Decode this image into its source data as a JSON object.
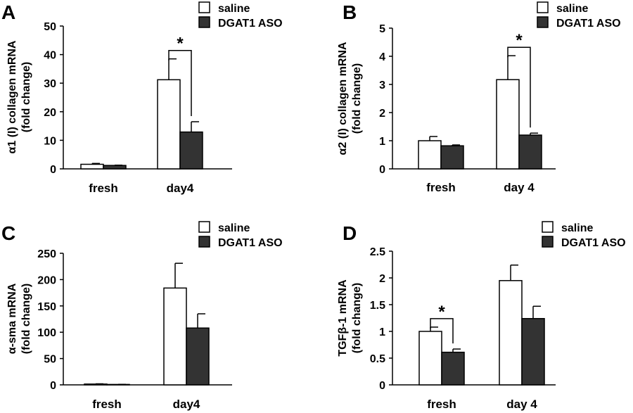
{
  "chart_data": [
    {
      "panel": "A",
      "type": "bar",
      "categories": [
        "fresh",
        "day4"
      ],
      "series": [
        {
          "name": "saline",
          "values": [
            1.6,
            31.2
          ],
          "errors": [
            0.3,
            7.3
          ],
          "color": "#ffffff"
        },
        {
          "name": "DGAT1 ASO",
          "values": [
            1.2,
            12.9
          ],
          "errors": [
            0.1,
            3.6
          ],
          "color": "#333333"
        }
      ],
      "ylabel_lines": [
        "α1 (I) collagen mRNA",
        "(fold change)"
      ],
      "ylim": [
        0,
        50
      ],
      "yticks": [
        "0",
        "10",
        "20",
        "30",
        "40",
        "50"
      ],
      "legend": "top-right",
      "significance": [
        {
          "category": "day4",
          "label": "*"
        }
      ]
    },
    {
      "panel": "B",
      "type": "bar",
      "categories": [
        "fresh",
        "day 4"
      ],
      "series": [
        {
          "name": "saline",
          "values": [
            1.0,
            3.17
          ],
          "errors": [
            0.15,
            0.85
          ],
          "color": "#ffffff"
        },
        {
          "name": "DGAT1 ASO",
          "values": [
            0.82,
            1.2
          ],
          "errors": [
            0.03,
            0.07
          ],
          "color": "#333333"
        }
      ],
      "ylabel_lines": [
        "α2 (I) collagen mRNA",
        "(fold change)"
      ],
      "ylim": [
        0,
        5
      ],
      "yticks": [
        "0",
        "1",
        "2",
        "3",
        "4",
        "5"
      ],
      "legend": "top-right",
      "significance": [
        {
          "category": "day 4",
          "label": "*"
        }
      ]
    },
    {
      "panel": "C",
      "type": "bar",
      "categories": [
        "fresh",
        "day4"
      ],
      "series": [
        {
          "name": "saline",
          "values": [
            1.5,
            184
          ],
          "errors": [
            0.5,
            47
          ],
          "color": "#ffffff"
        },
        {
          "name": "DGAT1 ASO",
          "values": [
            0.8,
            108
          ],
          "errors": [
            0.2,
            27
          ],
          "color": "#333333"
        }
      ],
      "ylabel_lines": [
        "α-sma mRNA",
        "(fold change)"
      ],
      "ylim": [
        0,
        250
      ],
      "yticks": [
        "0",
        "50",
        "100",
        "150",
        "200",
        "250"
      ],
      "legend": "top-right",
      "significance": []
    },
    {
      "panel": "D",
      "type": "bar",
      "categories": [
        "fresh",
        "day 4"
      ],
      "series": [
        {
          "name": "saline",
          "values": [
            1.0,
            1.95
          ],
          "errors": [
            0.08,
            0.29
          ],
          "color": "#ffffff"
        },
        {
          "name": "DGAT1 ASO",
          "values": [
            0.61,
            1.24
          ],
          "errors": [
            0.06,
            0.23
          ],
          "color": "#333333"
        }
      ],
      "ylabel_lines": [
        "TGFβ-1 mRNA",
        "(fold change)"
      ],
      "ylim": [
        0,
        2.5
      ],
      "yticks": [
        "0",
        "0.5",
        "1",
        "1.5",
        "2",
        "2.5"
      ],
      "legend": "top-right",
      "significance": [
        {
          "category": "fresh",
          "label": "*"
        }
      ]
    }
  ]
}
